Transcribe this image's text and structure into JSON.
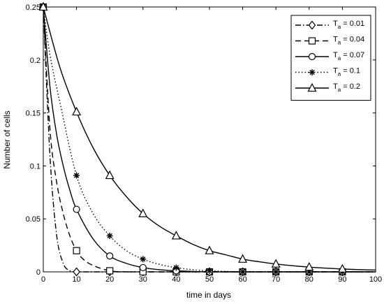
{
  "chart_data": {
    "type": "line",
    "title": "",
    "xlabel": "time in days",
    "ylabel": "Number of cells",
    "xlim": [
      0,
      100
    ],
    "ylim": [
      0,
      0.25
    ],
    "xticks": [
      0,
      10,
      20,
      30,
      40,
      50,
      60,
      70,
      80,
      90,
      100
    ],
    "yticks": [
      0,
      0.05,
      0.1,
      0.15,
      0.2,
      0.25
    ],
    "ytick_labels": [
      "0",
      "0.05",
      "0.1",
      "0.15",
      "0.2",
      "0.25"
    ],
    "grid": false,
    "legend_position": "top-right",
    "series": [
      {
        "name": "T_a = 0.01",
        "legend_main": "T",
        "legend_sub": "a",
        "legend_rest": " = 0.01",
        "line": "dashdot",
        "marker": "diamond",
        "x": [
          0,
          2,
          4,
          6,
          8,
          10,
          20,
          30,
          40,
          50,
          60,
          70,
          80,
          90,
          100
        ],
        "y": [
          0.25,
          0.11,
          0.035,
          0.008,
          0.001,
          0,
          0,
          0,
          0,
          0,
          0,
          0,
          0,
          0,
          0
        ],
        "marker_x": [
          0,
          10,
          20,
          30,
          40,
          50,
          60,
          70,
          80,
          90
        ],
        "marker_y": [
          0.25,
          0,
          0,
          0,
          0,
          0,
          0,
          0,
          0,
          0
        ]
      },
      {
        "name": "T_a = 0.04",
        "legend_main": "T",
        "legend_sub": "a",
        "legend_rest": " = 0.04",
        "line": "dashed",
        "marker": "square",
        "x": [
          0,
          2,
          4,
          6,
          8,
          10,
          12,
          15,
          20,
          25,
          30,
          40,
          50,
          60,
          70,
          80,
          90,
          100
        ],
        "y": [
          0.25,
          0.135,
          0.085,
          0.055,
          0.034,
          0.02,
          0.012,
          0.006,
          0.001,
          0,
          0,
          0,
          0,
          0,
          0,
          0,
          0,
          0
        ],
        "marker_x": [
          0,
          10,
          20,
          30,
          40,
          50,
          60,
          70,
          80,
          90
        ],
        "marker_y": [
          0.25,
          0.02,
          0.001,
          0,
          0,
          0,
          0,
          0,
          0,
          0
        ]
      },
      {
        "name": "T_a = 0.07",
        "legend_main": "T",
        "legend_sub": "a",
        "legend_rest": " = 0.07",
        "line": "solid",
        "marker": "circle",
        "x": [
          0,
          2,
          4,
          6,
          8,
          10,
          15,
          20,
          25,
          30,
          35,
          40,
          50,
          60,
          70,
          80,
          90,
          100
        ],
        "y": [
          0.25,
          0.175,
          0.13,
          0.1,
          0.077,
          0.059,
          0.031,
          0.015,
          0.008,
          0.004,
          0.002,
          0.001,
          0,
          0,
          0,
          0,
          0,
          0
        ],
        "marker_x": [
          0,
          10,
          20,
          30,
          40,
          50,
          60,
          70,
          80,
          90
        ],
        "marker_y": [
          0.25,
          0.059,
          0.015,
          0.004,
          0.001,
          0,
          0,
          0,
          0,
          0
        ]
      },
      {
        "name": "T_a = 0.1",
        "legend_main": "T",
        "legend_sub": "a",
        "legend_rest": " = 0.1",
        "line": "dotted",
        "marker": "asterisk",
        "x": [
          0,
          2,
          5,
          10,
          15,
          20,
          25,
          30,
          35,
          40,
          45,
          50,
          60,
          70,
          80,
          90,
          100
        ],
        "y": [
          0.25,
          0.205,
          0.16,
          0.091,
          0.055,
          0.034,
          0.02,
          0.012,
          0.007,
          0.004,
          0.002,
          0.001,
          0,
          0,
          0,
          0,
          0
        ],
        "marker_x": [
          0,
          10,
          20,
          30,
          40,
          50,
          60,
          70,
          80,
          90
        ],
        "marker_y": [
          0.25,
          0.091,
          0.034,
          0.012,
          0.004,
          0.001,
          0,
          0,
          0,
          0
        ]
      },
      {
        "name": "T_a = 0.2",
        "legend_main": "T",
        "legend_sub": "a",
        "legend_rest": " = 0.2",
        "line": "solid",
        "marker": "triangle",
        "x": [
          0,
          5,
          10,
          15,
          20,
          25,
          30,
          35,
          40,
          45,
          50,
          55,
          60,
          65,
          70,
          75,
          80,
          85,
          90,
          95,
          100
        ],
        "y": [
          0.25,
          0.193,
          0.151,
          0.117,
          0.091,
          0.071,
          0.055,
          0.043,
          0.034,
          0.026,
          0.02,
          0.016,
          0.012,
          0.0095,
          0.0074,
          0.0058,
          0.0045,
          0.0035,
          0.0027,
          0.0021,
          0.0017
        ],
        "marker_x": [
          0,
          10,
          20,
          30,
          40,
          50,
          60,
          70,
          80,
          90
        ],
        "marker_y": [
          0.25,
          0.151,
          0.091,
          0.055,
          0.034,
          0.02,
          0.012,
          0.0074,
          0.0045,
          0.0027
        ]
      }
    ]
  }
}
